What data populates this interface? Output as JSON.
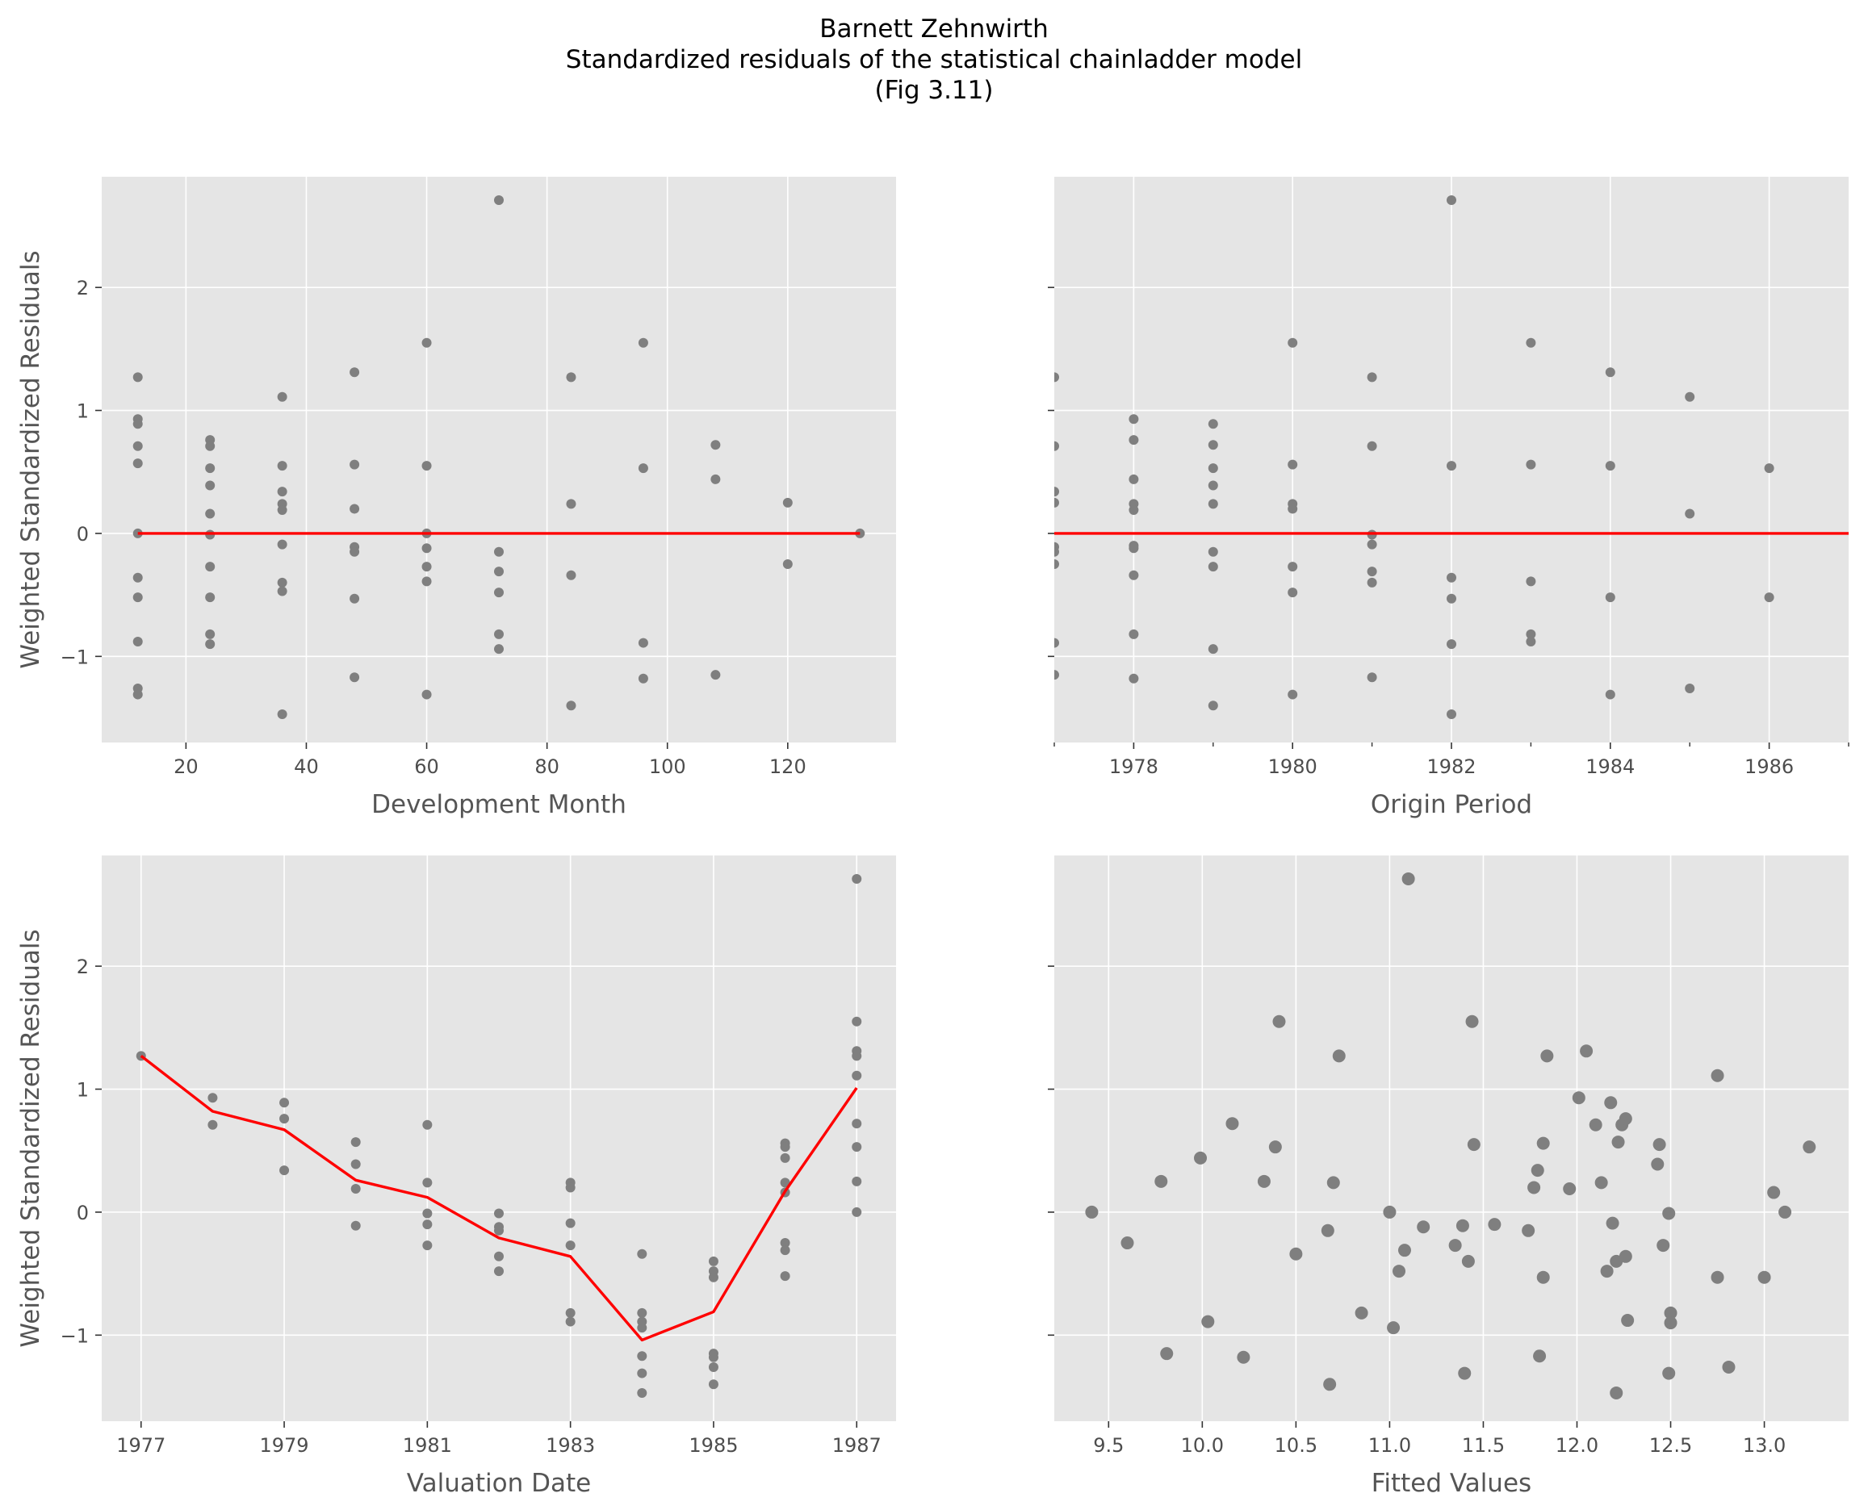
{
  "figure": {
    "title_lines": [
      "Barnett Zehnwirth",
      "Standardized residuals of the statistical chainladder model",
      "(Fig 3.11)"
    ]
  },
  "chart_data": [
    {
      "type": "scatter",
      "panel": "top-left",
      "xlabel": "Development Month",
      "ylabel": "Weighted Standardized Residuals",
      "xlim": [
        6,
        138
      ],
      "ylim": [
        -1.7,
        2.9
      ],
      "xticks": [
        20,
        40,
        60,
        80,
        100,
        120
      ],
      "xtick_labels": [
        "20",
        "40",
        "60",
        "80",
        "100",
        "120"
      ],
      "yticks": [
        -1,
        0,
        1,
        2
      ],
      "ytick_labels": [
        "−1",
        "0",
        "1",
        "2"
      ],
      "grid": true,
      "points": [
        [
          12,
          1.27
        ],
        [
          12,
          0.93
        ],
        [
          12,
          0.89
        ],
        [
          12,
          0.71
        ],
        [
          12,
          0.57
        ],
        [
          12,
          0.0
        ],
        [
          12,
          -0.36
        ],
        [
          12,
          -0.52
        ],
        [
          12,
          -0.88
        ],
        [
          12,
          -1.26
        ],
        [
          12,
          -1.31
        ],
        [
          24,
          0.76
        ],
        [
          24,
          0.71
        ],
        [
          24,
          0.53
        ],
        [
          24,
          0.39
        ],
        [
          24,
          0.16
        ],
        [
          24,
          -0.01
        ],
        [
          24,
          -0.27
        ],
        [
          24,
          -0.52
        ],
        [
          24,
          -0.82
        ],
        [
          24,
          -0.9
        ],
        [
          36,
          1.11
        ],
        [
          36,
          0.55
        ],
        [
          36,
          0.34
        ],
        [
          36,
          0.24
        ],
        [
          36,
          0.19
        ],
        [
          36,
          -0.09
        ],
        [
          36,
          -0.4
        ],
        [
          36,
          -0.47
        ],
        [
          36,
          -1.47
        ],
        [
          48,
          1.31
        ],
        [
          48,
          0.56
        ],
        [
          48,
          0.2
        ],
        [
          48,
          -0.11
        ],
        [
          48,
          -0.15
        ],
        [
          48,
          -0.53
        ],
        [
          48,
          -1.17
        ],
        [
          60,
          1.55
        ],
        [
          60,
          0.55
        ],
        [
          60,
          0.0
        ],
        [
          60,
          -0.12
        ],
        [
          60,
          -0.27
        ],
        [
          60,
          -0.39
        ],
        [
          60,
          -1.31
        ],
        [
          72,
          2.71
        ],
        [
          72,
          -0.15
        ],
        [
          72,
          -0.31
        ],
        [
          72,
          -0.48
        ],
        [
          72,
          -0.82
        ],
        [
          72,
          -0.94
        ],
        [
          84,
          1.27
        ],
        [
          84,
          0.24
        ],
        [
          84,
          -0.34
        ],
        [
          84,
          -1.4
        ],
        [
          96,
          1.55
        ],
        [
          96,
          0.53
        ],
        [
          96,
          -0.89
        ],
        [
          96,
          -1.18
        ],
        [
          108,
          0.72
        ],
        [
          108,
          0.44
        ],
        [
          108,
          -1.15
        ],
        [
          120,
          0.25
        ],
        [
          120,
          -0.25
        ],
        [
          132,
          0.0
        ]
      ],
      "trend_line": {
        "x": [
          12,
          132
        ],
        "y": [
          0,
          0
        ],
        "color": "#ff0000"
      }
    },
    {
      "type": "scatter",
      "panel": "top-right",
      "xlabel": "Origin Period",
      "ylabel": "",
      "xlim": [
        1977,
        1987
      ],
      "ylim": [
        -1.7,
        2.9
      ],
      "xticks": [
        1978,
        1980,
        1982,
        1984,
        1986
      ],
      "xtick_labels": [
        "1978",
        "1980",
        "1982",
        "1984",
        "1986"
      ],
      "grid": true,
      "points": [
        [
          1977,
          1.27
        ],
        [
          1977,
          0.71
        ],
        [
          1977,
          0.34
        ],
        [
          1977,
          0.25
        ],
        [
          1977,
          -0.11
        ],
        [
          1977,
          -0.15
        ],
        [
          1977,
          -0.25
        ],
        [
          1977,
          -0.89
        ],
        [
          1977,
          -1.15
        ],
        [
          1978,
          0.93
        ],
        [
          1978,
          0.76
        ],
        [
          1978,
          0.44
        ],
        [
          1978,
          0.24
        ],
        [
          1978,
          0.19
        ],
        [
          1978,
          -0.1
        ],
        [
          1978,
          -0.12
        ],
        [
          1978,
          -0.34
        ],
        [
          1978,
          -0.82
        ],
        [
          1978,
          -1.18
        ],
        [
          1979,
          0.89
        ],
        [
          1979,
          0.72
        ],
        [
          1979,
          0.53
        ],
        [
          1979,
          0.39
        ],
        [
          1979,
          0.24
        ],
        [
          1979,
          -0.15
        ],
        [
          1979,
          -0.27
        ],
        [
          1979,
          -0.94
        ],
        [
          1979,
          -1.4
        ],
        [
          1980,
          1.55
        ],
        [
          1980,
          0.56
        ],
        [
          1980,
          0.24
        ],
        [
          1980,
          0.2
        ],
        [
          1980,
          -0.27
        ],
        [
          1980,
          -0.48
        ],
        [
          1980,
          -1.31
        ],
        [
          1981,
          1.27
        ],
        [
          1981,
          0.71
        ],
        [
          1981,
          -0.01
        ],
        [
          1981,
          -0.09
        ],
        [
          1981,
          -0.31
        ],
        [
          1981,
          -0.4
        ],
        [
          1981,
          -1.17
        ],
        [
          1982,
          2.71
        ],
        [
          1982,
          0.55
        ],
        [
          1982,
          -0.36
        ],
        [
          1982,
          -0.53
        ],
        [
          1982,
          -0.9
        ],
        [
          1982,
          -1.47
        ],
        [
          1983,
          1.55
        ],
        [
          1983,
          0.56
        ],
        [
          1983,
          -0.39
        ],
        [
          1983,
          -0.82
        ],
        [
          1983,
          -0.88
        ],
        [
          1984,
          1.31
        ],
        [
          1984,
          0.55
        ],
        [
          1984,
          -0.52
        ],
        [
          1984,
          -1.31
        ],
        [
          1985,
          1.11
        ],
        [
          1985,
          0.16
        ],
        [
          1985,
          -1.26
        ],
        [
          1986,
          0.53
        ],
        [
          1986,
          -0.52
        ]
      ],
      "trend_line": {
        "x": [
          1977,
          1987
        ],
        "y": [
          0,
          0
        ],
        "color": "#ff0000"
      }
    },
    {
      "type": "scatter",
      "panel": "bottom-left",
      "xlabel": "Valuation Date",
      "ylabel": "Weighted Standardized Residuals",
      "xlim": [
        1976.45,
        1987.55
      ],
      "ylim": [
        -1.7,
        2.9
      ],
      "xticks": [
        1977,
        1979,
        1981,
        1983,
        1985,
        1987
      ],
      "xtick_labels": [
        "1977",
        "1979",
        "1981",
        "1983",
        "1985",
        "1987"
      ],
      "yticks": [
        -1,
        0,
        1,
        2
      ],
      "ytick_labels": [
        "−1",
        "0",
        "1",
        "2"
      ],
      "grid": true,
      "points": [
        [
          1977,
          1.27
        ],
        [
          1978,
          0.93
        ],
        [
          1978,
          0.71
        ],
        [
          1979,
          0.89
        ],
        [
          1979,
          0.76
        ],
        [
          1979,
          0.34
        ],
        [
          1980,
          0.57
        ],
        [
          1980,
          0.39
        ],
        [
          1980,
          0.19
        ],
        [
          1980,
          -0.11
        ],
        [
          1981,
          0.71
        ],
        [
          1981,
          0.24
        ],
        [
          1981,
          -0.01
        ],
        [
          1981,
          -0.1
        ],
        [
          1981,
          -0.27
        ],
        [
          1982,
          -0.01
        ],
        [
          1982,
          -0.12
        ],
        [
          1982,
          -0.15
        ],
        [
          1982,
          -0.36
        ],
        [
          1982,
          -0.48
        ],
        [
          1983,
          0.24
        ],
        [
          1983,
          0.2
        ],
        [
          1983,
          -0.09
        ],
        [
          1983,
          -0.27
        ],
        [
          1983,
          -0.82
        ],
        [
          1983,
          -0.89
        ],
        [
          1984,
          -0.34
        ],
        [
          1984,
          -0.82
        ],
        [
          1984,
          -0.89
        ],
        [
          1984,
          -0.94
        ],
        [
          1984,
          -1.17
        ],
        [
          1984,
          -1.31
        ],
        [
          1984,
          -1.47
        ],
        [
          1985,
          -0.4
        ],
        [
          1985,
          -0.48
        ],
        [
          1985,
          -0.53
        ],
        [
          1985,
          -1.15
        ],
        [
          1985,
          -1.18
        ],
        [
          1985,
          -1.26
        ],
        [
          1985,
          -1.4
        ],
        [
          1986,
          0.56
        ],
        [
          1986,
          0.53
        ],
        [
          1986,
          0.44
        ],
        [
          1986,
          0.24
        ],
        [
          1986,
          0.16
        ],
        [
          1986,
          -0.25
        ],
        [
          1986,
          -0.31
        ],
        [
          1986,
          -0.52
        ],
        [
          1987,
          2.71
        ],
        [
          1987,
          1.55
        ],
        [
          1987,
          1.31
        ],
        [
          1987,
          1.27
        ],
        [
          1987,
          1.11
        ],
        [
          1987,
          0.72
        ],
        [
          1987,
          0.53
        ],
        [
          1987,
          0.25
        ],
        [
          1987,
          0.0
        ]
      ],
      "trend_line": {
        "x": [
          1977,
          1978,
          1979,
          1980,
          1981,
          1982,
          1983,
          1984,
          1985,
          1986,
          1987
        ],
        "y": [
          1.27,
          0.82,
          0.67,
          0.26,
          0.12,
          -0.21,
          -0.36,
          -1.04,
          -0.81,
          0.17,
          1.01
        ],
        "color": "#ff0000"
      }
    },
    {
      "type": "scatter",
      "panel": "bottom-right",
      "xlabel": "Fitted Values",
      "ylabel": "",
      "xlim": [
        9.21,
        13.45
      ],
      "ylim": [
        -1.7,
        2.9
      ],
      "xticks": [
        9.5,
        10.0,
        10.5,
        11.0,
        11.5,
        12.0,
        12.5,
        13.0
      ],
      "xtick_labels": [
        "9.5",
        "10.0",
        "10.5",
        "11.0",
        "11.5",
        "12.0",
        "12.5",
        "13.0"
      ],
      "grid": true,
      "points": [
        [
          9.41,
          0.0
        ],
        [
          9.6,
          -0.25
        ],
        [
          9.78,
          0.25
        ],
        [
          9.81,
          -1.15
        ],
        [
          9.99,
          0.44
        ],
        [
          10.03,
          -0.89
        ],
        [
          10.16,
          0.72
        ],
        [
          10.22,
          -1.18
        ],
        [
          10.33,
          0.25
        ],
        [
          10.39,
          0.53
        ],
        [
          10.41,
          1.55
        ],
        [
          10.5,
          -0.34
        ],
        [
          10.67,
          -0.15
        ],
        [
          10.68,
          -1.4
        ],
        [
          10.7,
          0.24
        ],
        [
          10.73,
          1.27
        ],
        [
          10.85,
          -0.82
        ],
        [
          11.0,
          0.0
        ],
        [
          11.02,
          -0.94
        ],
        [
          11.05,
          -0.48
        ],
        [
          11.08,
          -0.31
        ],
        [
          11.1,
          2.71
        ],
        [
          11.18,
          -0.12
        ],
        [
          11.35,
          -0.27
        ],
        [
          11.39,
          -0.11
        ],
        [
          11.4,
          -1.31
        ],
        [
          11.42,
          -0.4
        ],
        [
          11.44,
          1.55
        ],
        [
          11.45,
          0.55
        ],
        [
          11.56,
          -0.1
        ],
        [
          11.74,
          -0.15
        ],
        [
          11.77,
          0.2
        ],
        [
          11.79,
          0.34
        ],
        [
          11.8,
          -1.17
        ],
        [
          11.82,
          -0.53
        ],
        [
          11.82,
          0.56
        ],
        [
          11.84,
          1.27
        ],
        [
          11.96,
          0.19
        ],
        [
          12.01,
          0.93
        ],
        [
          12.05,
          1.31
        ],
        [
          12.1,
          0.71
        ],
        [
          12.13,
          0.24
        ],
        [
          12.16,
          -0.48
        ],
        [
          12.18,
          0.89
        ],
        [
          12.19,
          -0.09
        ],
        [
          12.21,
          -0.4
        ],
        [
          12.21,
          -1.47
        ],
        [
          12.22,
          0.57
        ],
        [
          12.24,
          0.71
        ],
        [
          12.26,
          0.76
        ],
        [
          12.26,
          -0.36
        ],
        [
          12.27,
          -0.88
        ],
        [
          12.43,
          0.39
        ],
        [
          12.44,
          0.55
        ],
        [
          12.46,
          -0.27
        ],
        [
          12.49,
          -0.01
        ],
        [
          12.49,
          -1.31
        ],
        [
          12.5,
          -0.82
        ],
        [
          12.5,
          -0.9
        ],
        [
          12.75,
          1.11
        ],
        [
          12.75,
          -0.53
        ],
        [
          12.81,
          -1.26
        ],
        [
          13.0,
          -0.53
        ],
        [
          13.05,
          0.16
        ],
        [
          13.11,
          0.0
        ],
        [
          13.24,
          0.53
        ]
      ]
    }
  ],
  "colors": {
    "panel_bg": "#e5e5e5",
    "grid": "#ffffff",
    "point": "#7f7f7f",
    "trend": "#ff0000",
    "tick_text": "#4d4d4d",
    "label_text": "#555555"
  }
}
